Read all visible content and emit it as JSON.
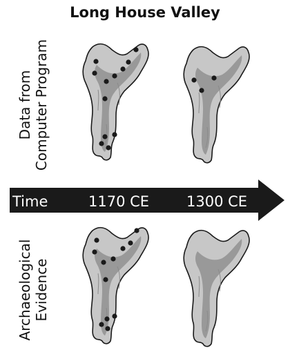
{
  "title": "Long House Valley",
  "rows": [
    {
      "id": "computer",
      "label_lines": [
        "Data from",
        "Computer Program"
      ]
    },
    {
      "id": "archaeological",
      "label_lines": [
        "Archaeological",
        "Evidence"
      ]
    }
  ],
  "timeline": {
    "label": "Time",
    "periods": [
      "1170 CE",
      "1300 CE"
    ]
  },
  "colors": {
    "valley_outer": "#c7c7c7",
    "valley_inner": "#999999",
    "outline": "#1a1a1a",
    "settlement": "#1a1a1a",
    "arrow": "#1a1a1a"
  },
  "icons": {
    "valley": "valley-map",
    "settlement": "settlement-dot",
    "arrow": "time-arrow"
  }
}
